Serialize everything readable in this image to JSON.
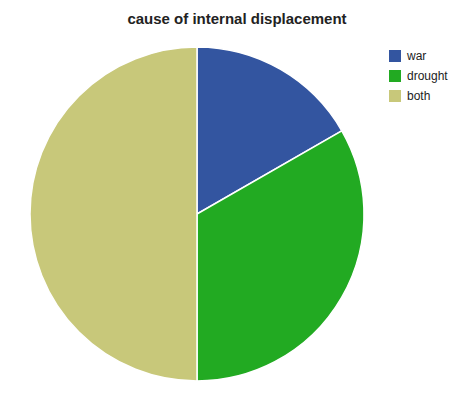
{
  "chart_data": {
    "type": "pie",
    "title": "cause of internal displacement",
    "categories": [
      "war",
      "drought",
      "both"
    ],
    "values": [
      16.7,
      33.3,
      50.0
    ],
    "colors": [
      "#3355a0",
      "#22aa22",
      "#c8c87a"
    ],
    "legend": "upper right"
  }
}
